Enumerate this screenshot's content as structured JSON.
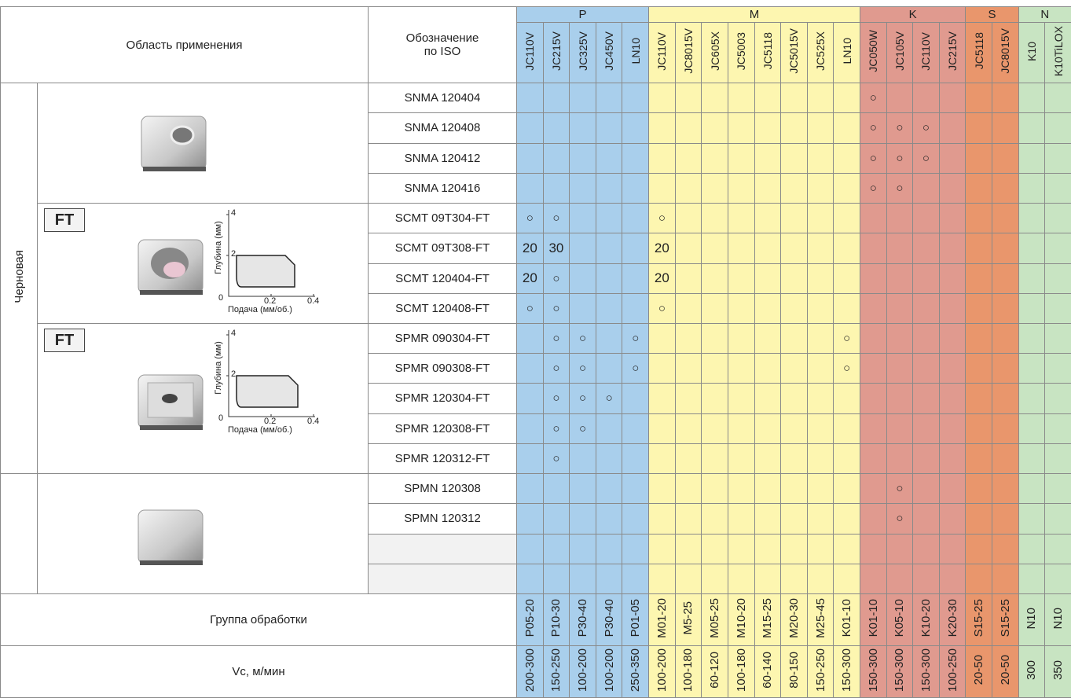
{
  "header": {
    "application_area": "Область применения",
    "iso_designation": "Обозначение по ISO"
  },
  "groups": [
    {
      "name": "P",
      "color": "#a9cfec",
      "grades": [
        "JC110V",
        "JC215V",
        "JC325V",
        "JC450V",
        "LN10"
      ]
    },
    {
      "name": "M",
      "color": "#fdf6b0",
      "grades": [
        "JC110V",
        "JC8015V",
        "JC605X",
        "JC5003",
        "JC5118",
        "JC5015V",
        "JC525X",
        "LN10"
      ]
    },
    {
      "name": "K",
      "color": "#e09a8f",
      "grades": [
        "JC050W",
        "JC105V",
        "JC110V",
        "JC215V"
      ]
    },
    {
      "name": "S",
      "color": "#e9966c",
      "grades": [
        "JC5118",
        "JC8015V"
      ]
    },
    {
      "name": "N",
      "color": "#c8e4c2",
      "grades": [
        "K10",
        "K10TiLOX"
      ]
    }
  ],
  "side_label": "Черновая",
  "sections": [
    {
      "badge": null,
      "chart": null
    },
    {
      "badge": "FT",
      "chart": {
        "y_label": "Глубина (мм)",
        "x_label": "Подача (мм/об.)",
        "yticks": [
          "4",
          "2"
        ],
        "xticks": [
          "0",
          "0.2",
          "0.4"
        ]
      }
    },
    {
      "badge": "FT",
      "chart": {
        "y_label": "Глубина (мм)",
        "x_label": "Подача (мм/об.)",
        "yticks": [
          "4",
          "2"
        ],
        "xticks": [
          "0",
          "0.2",
          "0.4"
        ]
      }
    },
    {
      "badge": null,
      "chart": null
    }
  ],
  "rows": [
    {
      "iso": "SNMA 120404",
      "cells": [
        null,
        null,
        null,
        null,
        null,
        null,
        null,
        null,
        null,
        null,
        null,
        null,
        null,
        "○",
        null,
        null,
        null,
        null,
        null,
        null,
        null
      ]
    },
    {
      "iso": "SNMA 120408",
      "cells": [
        null,
        null,
        null,
        null,
        null,
        null,
        null,
        null,
        null,
        null,
        null,
        null,
        null,
        "○",
        "○",
        "○",
        null,
        null,
        null,
        null,
        null
      ]
    },
    {
      "iso": "SNMA 120412",
      "cells": [
        null,
        null,
        null,
        null,
        null,
        null,
        null,
        null,
        null,
        null,
        null,
        null,
        null,
        "○",
        "○",
        "○",
        null,
        null,
        null,
        null,
        null
      ]
    },
    {
      "iso": "SNMA 120416",
      "cells": [
        null,
        null,
        null,
        null,
        null,
        null,
        null,
        null,
        null,
        null,
        null,
        null,
        null,
        "○",
        "○",
        null,
        null,
        null,
        null,
        null,
        null
      ]
    },
    {
      "iso": "SCMT 09T304-FT",
      "cells": [
        "○",
        "○",
        null,
        null,
        null,
        "○",
        null,
        null,
        null,
        null,
        null,
        null,
        null,
        null,
        null,
        null,
        null,
        null,
        null,
        null,
        null
      ]
    },
    {
      "iso": "SCMT 09T308-FT",
      "cells": [
        20,
        30,
        null,
        null,
        null,
        20,
        null,
        null,
        null,
        null,
        null,
        null,
        null,
        null,
        null,
        null,
        null,
        null,
        null,
        null,
        null
      ]
    },
    {
      "iso": "SCMT 120404-FT",
      "cells": [
        20,
        "○",
        null,
        null,
        null,
        20,
        null,
        null,
        null,
        null,
        null,
        null,
        null,
        null,
        null,
        null,
        null,
        null,
        null,
        null,
        null
      ]
    },
    {
      "iso": "SCMT 120408-FT",
      "cells": [
        "○",
        "○",
        null,
        null,
        null,
        "○",
        null,
        null,
        null,
        null,
        null,
        null,
        null,
        null,
        null,
        null,
        null,
        null,
        null,
        null,
        null
      ]
    },
    {
      "iso": "SPMR 090304-FT",
      "cells": [
        null,
        "○",
        "○",
        null,
        "○",
        null,
        null,
        null,
        null,
        null,
        null,
        null,
        "○",
        null,
        null,
        null,
        null,
        null,
        null,
        null,
        null
      ]
    },
    {
      "iso": "SPMR 090308-FT",
      "cells": [
        null,
        "○",
        "○",
        null,
        "○",
        null,
        null,
        null,
        null,
        null,
        null,
        null,
        "○",
        null,
        null,
        null,
        null,
        null,
        null,
        null,
        null
      ]
    },
    {
      "iso": "SPMR 120304-FT",
      "cells": [
        null,
        "○",
        "○",
        "○",
        null,
        null,
        null,
        null,
        null,
        null,
        null,
        null,
        null,
        null,
        null,
        null,
        null,
        null,
        null,
        null,
        null
      ]
    },
    {
      "iso": "SPMR 120308-FT",
      "cells": [
        null,
        "○",
        "○",
        null,
        null,
        null,
        null,
        null,
        null,
        null,
        null,
        null,
        null,
        null,
        null,
        null,
        null,
        null,
        null,
        null,
        null
      ]
    },
    {
      "iso": "SPMR 120312-FT",
      "cells": [
        null,
        "○",
        null,
        null,
        null,
        null,
        null,
        null,
        null,
        null,
        null,
        null,
        null,
        null,
        null,
        null,
        null,
        null,
        null,
        null,
        null
      ]
    },
    {
      "iso": "SPMN 120308",
      "cells": [
        null,
        null,
        null,
        null,
        null,
        null,
        null,
        null,
        null,
        null,
        null,
        null,
        null,
        null,
        "○",
        null,
        null,
        null,
        null,
        null,
        null
      ]
    },
    {
      "iso": "SPMN 120312",
      "cells": [
        null,
        null,
        null,
        null,
        null,
        null,
        null,
        null,
        null,
        null,
        null,
        null,
        null,
        null,
        "○",
        null,
        null,
        null,
        null,
        null,
        null
      ]
    },
    {
      "iso": null,
      "cells": [
        null,
        null,
        null,
        null,
        null,
        null,
        null,
        null,
        null,
        null,
        null,
        null,
        null,
        null,
        null,
        null,
        null,
        null,
        null,
        null,
        null
      ]
    },
    {
      "iso": null,
      "cells": [
        null,
        null,
        null,
        null,
        null,
        null,
        null,
        null,
        null,
        null,
        null,
        null,
        null,
        null,
        null,
        null,
        null,
        null,
        null,
        null,
        null
      ]
    }
  ],
  "machining_group": {
    "label": "Группа обработки",
    "values": [
      "P05-20",
      "P10-30",
      "P30-40",
      "P30-40",
      "P01-05",
      "M01-20",
      "M5-25",
      "M05-25",
      "M10-20",
      "M15-25",
      "M20-30",
      "M25-45",
      "K01-10",
      "K01-10",
      "K05-10",
      "K10-20",
      "K20-30",
      "S15-25",
      "S15-25",
      "N10",
      "N10"
    ]
  },
  "cutting_speed": {
    "label": "Vc, м/мин",
    "values": [
      "200-300",
      "150-250",
      "100-200",
      "100-200",
      "250-350",
      "100-200",
      "100-180",
      "60-120",
      "100-180",
      "60-140",
      "80-150",
      "150-250",
      "150-300",
      "150-300",
      "150-300",
      "150-300",
      "100-250",
      "20-50",
      "20-50",
      "300",
      "350"
    ]
  }
}
